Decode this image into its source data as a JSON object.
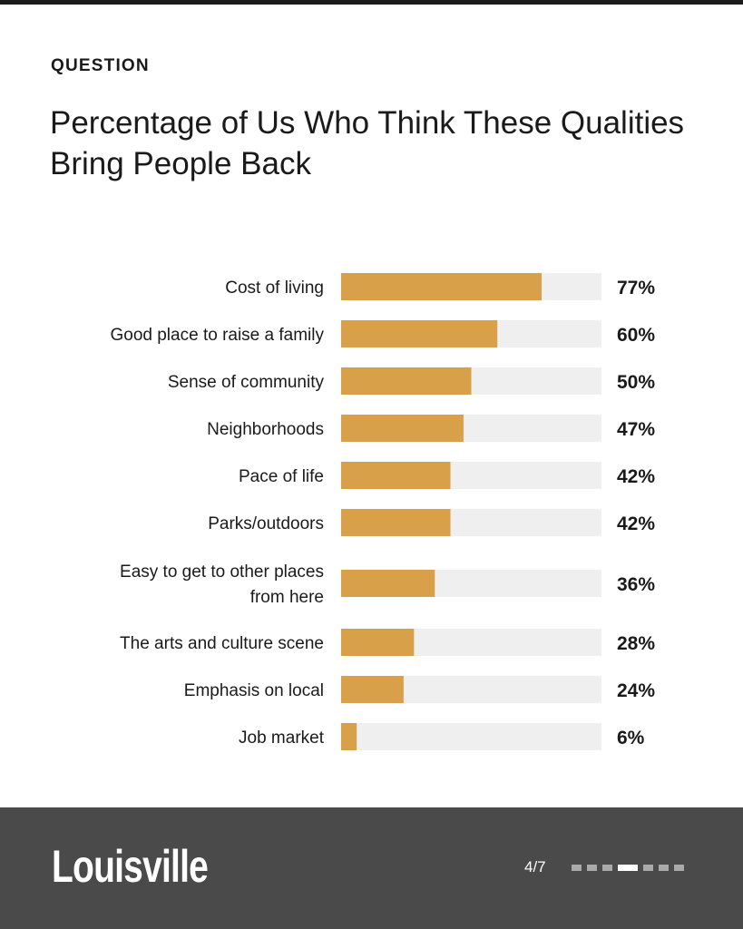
{
  "header": {
    "eyebrow": "QUESTION",
    "title": "Percentage of Us Who Think These Qualities Bring People Back"
  },
  "chart_data": {
    "type": "bar",
    "orientation": "horizontal",
    "title": "Percentage of Us Who Think These Qualities Bring People Back",
    "xlim": [
      0,
      100
    ],
    "grid": false,
    "value_suffix": "%",
    "bar_color": "#d9a04a",
    "track_color": "#efefef",
    "categories": [
      [
        "Cost of living"
      ],
      [
        "Good place to raise a family"
      ],
      [
        "Sense of community"
      ],
      [
        "Neighborhoods"
      ],
      [
        "Pace of life"
      ],
      [
        "Parks/outdoors"
      ],
      [
        "Easy to get to other places",
        "from here"
      ],
      [
        "The arts and culture scene"
      ],
      [
        "Emphasis on local"
      ],
      [
        "Job market"
      ]
    ],
    "values": [
      77,
      60,
      50,
      47,
      42,
      42,
      36,
      28,
      24,
      6
    ]
  },
  "footer": {
    "brand": "Louisville",
    "page_indicator": "4/7",
    "pages_total": 7,
    "page_current": 4
  }
}
